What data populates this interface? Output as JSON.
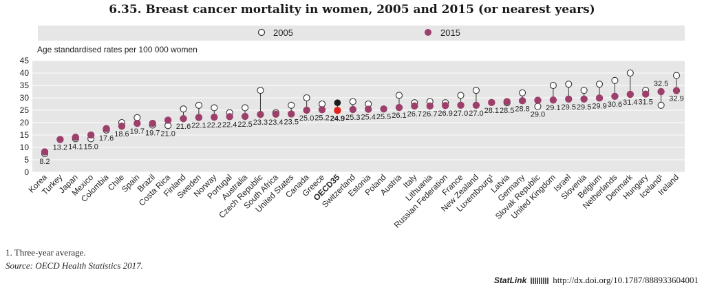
{
  "chart_data": {
    "type": "dot-plot",
    "title": "6.35. Breast cancer mortality in women, 2005 and 2015 (or nearest years)",
    "ylabel": "Age standardised rates per 100 000 women",
    "ylim": [
      0,
      45
    ],
    "yticks": [
      0,
      5,
      10,
      15,
      20,
      25,
      30,
      35,
      40,
      45
    ],
    "legend": [
      {
        "name": "2005",
        "marker": "open-circle"
      },
      {
        "name": "2015",
        "marker": "filled-circle"
      }
    ],
    "categories": [
      "Korea",
      "Turkey",
      "Japan",
      "Mexico",
      "Colombia",
      "Chile",
      "Spain",
      "Brazil",
      "Costa Rica",
      "Finland",
      "Sweden",
      "Norway",
      "Portugal",
      "Australia",
      "Czech Republic",
      "South Africa",
      "United States",
      "Canada",
      "Greece",
      "OECD35",
      "Switzerland",
      "Estonia",
      "Poland",
      "Austria",
      "Italy",
      "Lithuania",
      "Russian Federation",
      "France",
      "New Zealand",
      "Luxembourg¹",
      "Latvia",
      "Germany",
      "Slovak Republic",
      "United Kingdom",
      "Israel",
      "Slovenia",
      "Belgium",
      "Netherlands",
      "Denmark",
      "Hungary",
      "Iceland¹",
      "Ireland"
    ],
    "highlight_category": "OECD35",
    "series": [
      {
        "name": "2005",
        "values": [
          7.5,
          null,
          13.5,
          13.5,
          17.0,
          20.0,
          22.0,
          19.0,
          18.8,
          25.5,
          27.0,
          26.0,
          24.0,
          26.0,
          33.0,
          24.0,
          27.0,
          30.0,
          27.5,
          28.0,
          28.5,
          27.5,
          null,
          31.0,
          28.0,
          28.5,
          28.0,
          31.0,
          33.0,
          null,
          28.0,
          32.0,
          26.5,
          35.0,
          35.5,
          33.0,
          35.5,
          37.0,
          40.0,
          33.0,
          27.0,
          39.0
        ]
      },
      {
        "name": "2015",
        "values": [
          8.2,
          13.2,
          14.1,
          15.0,
          17.6,
          18.6,
          19.7,
          19.7,
          21.0,
          21.6,
          22.1,
          22.2,
          22.4,
          22.5,
          23.3,
          23.4,
          23.5,
          25.0,
          25.2,
          24.9,
          25.3,
          25.4,
          25.5,
          26.1,
          26.7,
          26.7,
          26.9,
          27.0,
          27.0,
          28.1,
          28.5,
          28.8,
          29.0,
          29.1,
          29.5,
          29.5,
          29.9,
          30.6,
          31.4,
          31.5,
          32.5,
          32.9
        ]
      }
    ],
    "value_labels": [
      "8.2",
      "13.2",
      "14.1",
      "15.0",
      "17.6",
      "18.6",
      "19.7",
      "19.7",
      "21.0",
      "21.6",
      "22.1",
      "22.2",
      "22.4",
      "22.5",
      "23.3",
      "23.4",
      "23.5",
      "25.0",
      "25.2",
      "24.9",
      "25.3",
      "25.4",
      "25.5",
      "26.1",
      "26.7",
      "26.7",
      "26.9",
      "27.0",
      "27.0",
      "28.1",
      "28.5",
      "28.8",
      "29.0",
      "29.1",
      "29.5",
      "29.5",
      "29.9",
      "30.6",
      "31.4",
      "31.5",
      "32.5",
      "32.9"
    ],
    "colors": {
      "series_2015": "#9c3f6b",
      "series_2005_fill": "#ffffff",
      "series_2005_stroke": "#333333",
      "oecd_2015": "#e3201b",
      "oecd_2005": "#1a1a1a",
      "plot_bg": "#e6e6e6",
      "grid": "#ffffff",
      "connector": "#333333"
    }
  },
  "footnotes": {
    "note": "1. Three-year average.",
    "source": "Source: OECD Health Statistics 2017."
  },
  "statlink": {
    "brand": "StatLink",
    "url": "http://dx.doi.org/10.1787/888933604001"
  }
}
